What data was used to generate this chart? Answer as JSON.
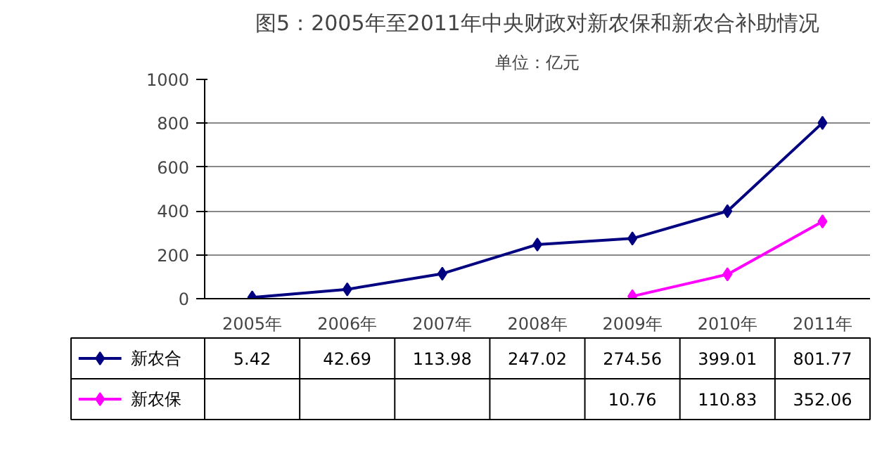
{
  "chart_data": {
    "type": "line",
    "title": "图5：2005年至2011年中央财政对新农保和新农合补助情况",
    "subtitle": "单位：亿元",
    "categories": [
      "2005年",
      "2006年",
      "2007年",
      "2008年",
      "2009年",
      "2010年",
      "2011年"
    ],
    "series": [
      {
        "name": "新农合",
        "color": "#000080",
        "values": [
          5.42,
          42.69,
          113.98,
          247.02,
          274.56,
          399.01,
          801.77
        ]
      },
      {
        "name": "新农保",
        "color": "#ff00ff",
        "values": [
          null,
          null,
          null,
          null,
          10.76,
          110.83,
          352.06
        ]
      }
    ],
    "ylim": [
      0,
      1000
    ],
    "yticks": [
      0,
      200,
      400,
      600,
      800,
      1000
    ],
    "grid": "y",
    "marker": "diamond",
    "line_style": "solid",
    "data_labels": true,
    "legend": "bottom left"
  }
}
